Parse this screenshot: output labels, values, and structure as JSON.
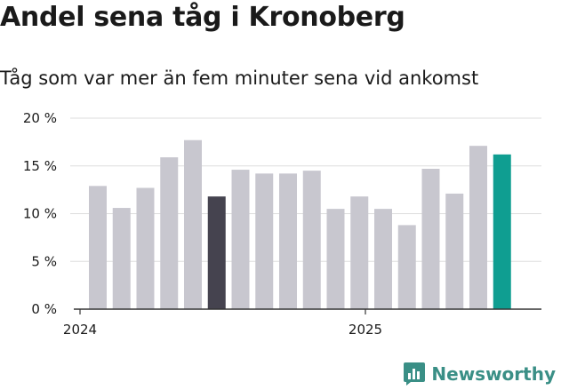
{
  "title": "Andel sena tåg i Kronoberg",
  "subtitle": "Tåg som var mer än fem minuter sena vid ankomst",
  "brand": {
    "name": "Newsworthy",
    "icon": "newsworthy-logo-icon",
    "color": "#3a8f86"
  },
  "colors": {
    "default": "#c8c7cf",
    "highlight_dark": "#45434f",
    "highlight_latest": "#0f9e91",
    "grid": "#dddddd",
    "axis": "#333333"
  },
  "chart_data": {
    "type": "bar",
    "title": "Andel sena tåg i Kronoberg",
    "subtitle": "Tåg som var mer än fem minuter sena vid ankomst",
    "x": [
      "2024-01",
      "2024-02",
      "2024-03",
      "2024-04",
      "2024-05",
      "2024-06",
      "2024-07",
      "2024-08",
      "2024-09",
      "2024-10",
      "2024-11",
      "2024-12",
      "2025-01",
      "2025-02",
      "2025-03",
      "2025-04",
      "2025-05",
      "2025-06"
    ],
    "values": [
      12.9,
      10.6,
      12.7,
      15.9,
      17.7,
      11.8,
      14.6,
      14.2,
      14.2,
      14.5,
      10.5,
      11.8,
      10.5,
      8.8,
      14.7,
      12.1,
      17.1,
      16.2
    ],
    "bar_colors": [
      "default",
      "default",
      "default",
      "default",
      "default",
      "highlight_dark",
      "default",
      "default",
      "default",
      "default",
      "default",
      "default",
      "default",
      "default",
      "default",
      "default",
      "default",
      "highlight_latest"
    ],
    "ylim": [
      0,
      20
    ],
    "yticks": [
      0,
      5,
      10,
      15,
      20
    ],
    "ytick_labels": [
      "0 %",
      "5 %",
      "10 %",
      "15 %",
      "20 %"
    ],
    "xtick_labels": [
      {
        "at": "2024-01",
        "label": "2024"
      },
      {
        "at": "2025-01",
        "label": "2025"
      }
    ],
    "grid": true,
    "legend": "none"
  }
}
